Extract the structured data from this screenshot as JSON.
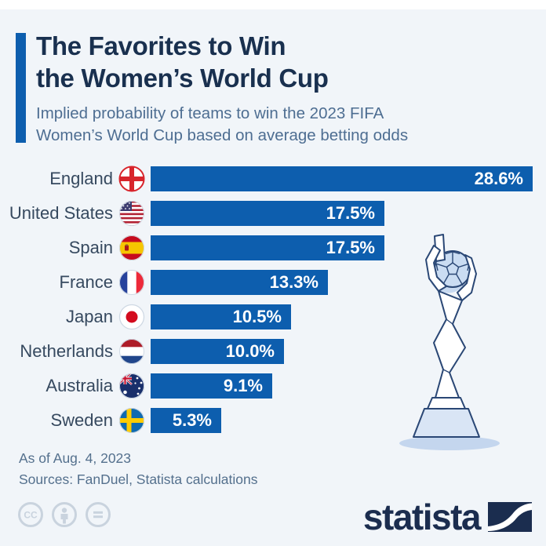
{
  "header": {
    "title_line1": "The Favorites to Win",
    "title_line2": "the Women’s World Cup",
    "subtitle_line1": "Implied probability of teams to win the 2023 FIFA",
    "subtitle_line2": "Women’s World Cup based on average betting odds"
  },
  "chart_data": {
    "type": "bar",
    "orientation": "horizontal",
    "unit": "%",
    "max_value": 28.6,
    "bar_color": "#0d5eae",
    "categories": [
      "England",
      "United States",
      "Spain",
      "France",
      "Japan",
      "Netherlands",
      "Australia",
      "Sweden"
    ],
    "values": [
      28.6,
      17.5,
      17.5,
      13.3,
      10.5,
      10.0,
      9.1,
      5.3
    ],
    "rows": [
      {
        "team": "England",
        "flag": "england",
        "value": 28.6,
        "label": "28.6%"
      },
      {
        "team": "United States",
        "flag": "united-states",
        "value": 17.5,
        "label": "17.5%"
      },
      {
        "team": "Spain",
        "flag": "spain",
        "value": 17.5,
        "label": "17.5%"
      },
      {
        "team": "France",
        "flag": "france",
        "value": 13.3,
        "label": "13.3%"
      },
      {
        "team": "Japan",
        "flag": "japan",
        "value": 10.5,
        "label": "10.5%"
      },
      {
        "team": "Netherlands",
        "flag": "netherlands",
        "value": 10.0,
        "label": "10.0%"
      },
      {
        "team": "Australia",
        "flag": "australia",
        "value": 9.1,
        "label": "9.1%"
      },
      {
        "team": "Sweden",
        "flag": "sweden",
        "value": 5.3,
        "label": "5.3%"
      }
    ]
  },
  "footer": {
    "as_of": "As of Aug. 4, 2023",
    "sources": "Sources: FanDuel, Statista calculations",
    "license_icons": [
      "cc",
      "by",
      "nd"
    ]
  },
  "branding": {
    "logo_text": "statista",
    "logo_color": "#1b2d4f"
  }
}
